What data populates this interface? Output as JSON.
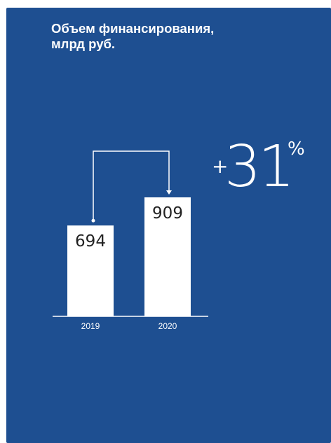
{
  "chart_data": {
    "type": "bar",
    "title": "Объем финансирования,",
    "subtitle": "млрд руб.",
    "categories": [
      "2019",
      "2020"
    ],
    "values": [
      694,
      909
    ],
    "value_labels": [
      "694",
      "909"
    ],
    "annotation": {
      "sign": "+",
      "value": "31",
      "unit": "%"
    },
    "colors": {
      "background": "#1e4f91",
      "bar": "#ffffff",
      "label": "#222222",
      "axis": "#ffffff"
    }
  }
}
